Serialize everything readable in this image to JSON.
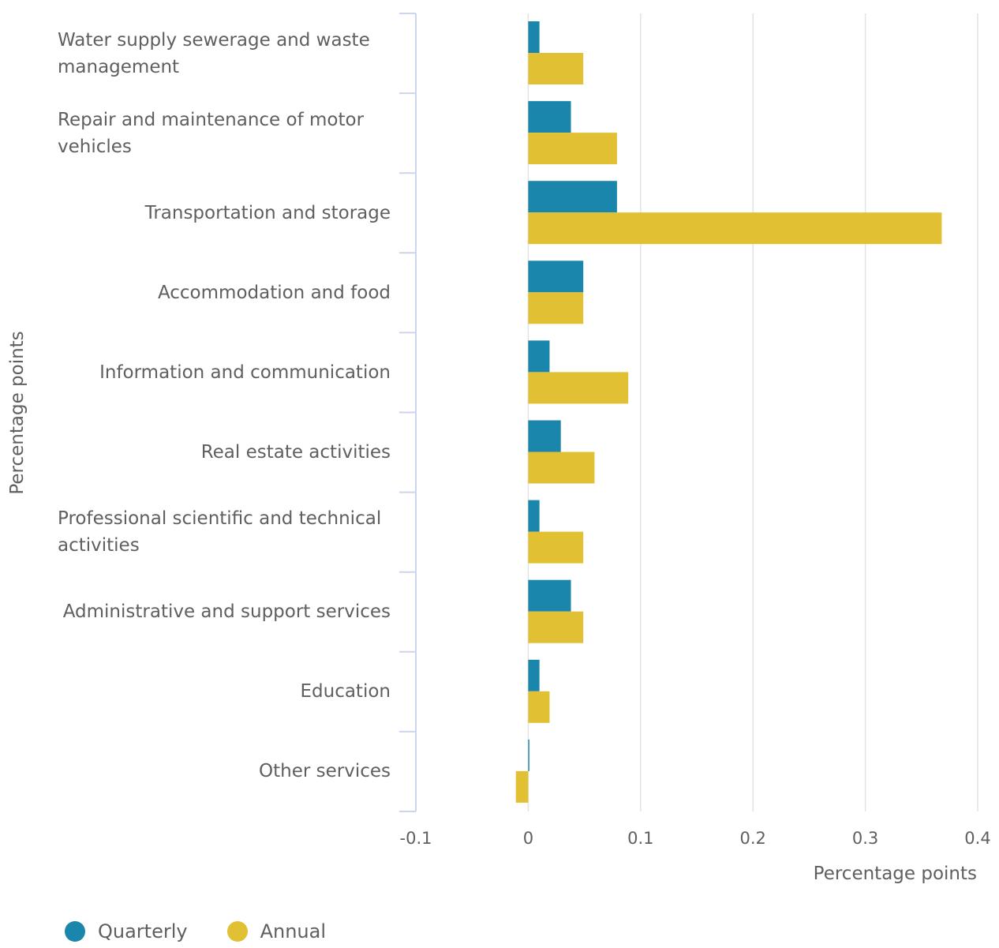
{
  "chart_data": {
    "type": "bar",
    "orientation": "horizontal",
    "categories": [
      "Water supply sewerage and waste management",
      "Repair and maintenance of motor vehicles",
      "Transportation and storage",
      "Accommodation and food",
      "Information and communication",
      "Real estate activities",
      "Professional scientific and technical activities",
      "Administrative and support services",
      "Education",
      "Other services"
    ],
    "series": [
      {
        "name": "Quarterly",
        "color": "#1b86ab",
        "values": [
          0.01,
          0.038,
          0.079,
          0.049,
          0.019,
          0.029,
          0.01,
          0.038,
          0.01,
          0.001
        ]
      },
      {
        "name": "Annual",
        "color": "#e2c034",
        "values": [
          0.049,
          0.079,
          0.368,
          0.049,
          0.089,
          0.059,
          0.049,
          0.049,
          0.019,
          -0.011
        ]
      }
    ],
    "x_ticks": [
      "-0.1",
      "0",
      "0.1",
      "0.2",
      "0.3",
      "0.4"
    ],
    "xlim": [
      -0.1,
      0.4
    ],
    "xlabel": "Percentage points",
    "ylabel": "Percentage points",
    "grid": true,
    "legend_position": "bottom-left"
  }
}
